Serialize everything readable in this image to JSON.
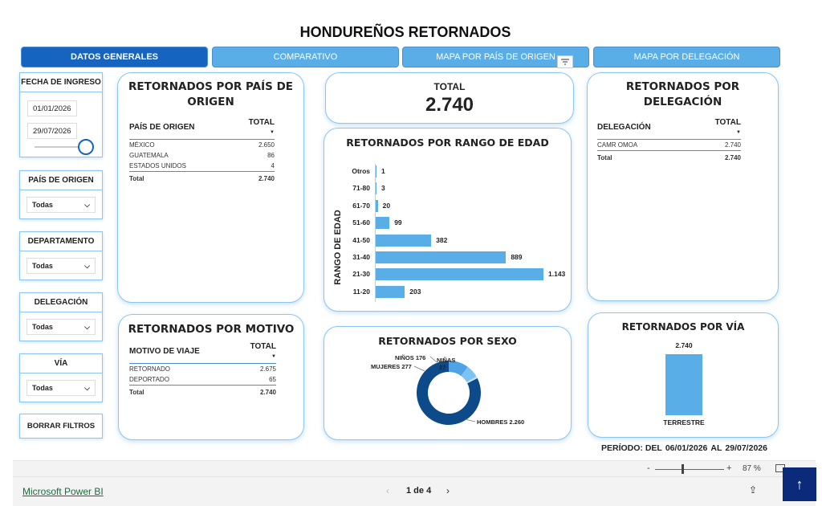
{
  "title": "HONDUREÑOS RETORNADOS",
  "tabs": [
    {
      "label": "DATOS GENERALES"
    },
    {
      "label": "COMPARATIVO"
    },
    {
      "label": "MAPA POR PAÍS DE ORIGEN"
    },
    {
      "label": "MAPA POR DELEGACIÓN"
    }
  ],
  "slicers": {
    "fecha": {
      "head": "FECHA DE INGRESO",
      "start": "01/01/2026",
      "end": "29/07/2026"
    },
    "pais": {
      "head": "PAÍS DE ORIGEN",
      "value": "Todas"
    },
    "departamento": {
      "head": "DEPARTAMENTO",
      "value": "Todas"
    },
    "delegacion": {
      "head": "DELEGACIÓN",
      "value": "Todas"
    },
    "via": {
      "head": "VÍA",
      "value": "Todas"
    },
    "clear_label": "BORRAR FILTROS"
  },
  "pais_card": {
    "title": "RETORNADOS POR PAÍS DE ORIGEN",
    "col1": "PAÍS DE ORIGEN",
    "col2": "TOTAL",
    "rows": [
      {
        "name": "MÉXICO",
        "value": "2.650"
      },
      {
        "name": "GUATEMALA",
        "value": "86"
      },
      {
        "name": "ESTADOS UNIDOS",
        "value": "4"
      }
    ],
    "total_label": "Total",
    "total_value": "2.740"
  },
  "total_card": {
    "label": "TOTAL",
    "value": "2.740"
  },
  "delegacion_card": {
    "title": "RETORNADOS POR DELEGACIÓN",
    "col1": "DELEGACIÓN",
    "col2": "TOTAL",
    "rows": [
      {
        "name": "CAMR OMOA",
        "value": "2.740"
      }
    ],
    "total_label": "Total",
    "total_value": "2.740"
  },
  "edad_card": {
    "title": "RETORNADOS POR RANGO DE EDAD",
    "ylabel": "RANGO DE EDAD"
  },
  "motivo_card": {
    "title": "RETORNADOS POR MOTIVO",
    "col1": "MOTIVO DE VIAJE",
    "col2": "TOTAL",
    "rows": [
      {
        "name": "RETORNADO",
        "value": "2.675"
      },
      {
        "name": "DEPORTADO",
        "value": "65"
      }
    ],
    "total_label": "Total",
    "total_value": "2.740"
  },
  "sexo_card": {
    "title": "RETORNADOS POR SEXO"
  },
  "via_card": {
    "title": "RETORNADOS POR VÍA"
  },
  "periodo": {
    "label": "PERÍODO: DEL",
    "start": "06/01/2026",
    "al": "AL",
    "end": "29/07/2026"
  },
  "zoom": {
    "minus": "-",
    "plus": "+",
    "level": "87 %"
  },
  "footer": {
    "brand": "Microsoft Power BI",
    "page": "1 de 4"
  },
  "colors": {
    "accent": "#1565c0",
    "bar": "#5aaee8",
    "donut_dark": "#0d4a8a",
    "donut_light": "#4da3e6"
  },
  "chart_data": [
    {
      "type": "bar",
      "orientation": "horizontal",
      "title": "RETORNADOS POR RANGO DE EDAD",
      "ylabel": "RANGO DE EDAD",
      "categories": [
        "Otros",
        "71-80",
        "61-70",
        "51-60",
        "41-50",
        "31-40",
        "21-30",
        "11-20"
      ],
      "values": [
        1,
        3,
        20,
        99,
        382,
        889,
        1143,
        203
      ],
      "labels": [
        "1",
        "3",
        "20",
        "99",
        "382",
        "889",
        "1.143",
        "203"
      ]
    },
    {
      "type": "pie",
      "title": "RETORNADOS POR SEXO",
      "categories": [
        "HOMBRES",
        "MUJERES",
        "NIÑOS",
        "NIÑAS"
      ],
      "values": [
        2260,
        277,
        176,
        27
      ],
      "labels": [
        "HOMBRES 2.260",
        "MUJERES 277",
        "NIÑOS 176",
        "NIÑAS 27"
      ]
    },
    {
      "type": "bar",
      "title": "RETORNADOS POR VÍA",
      "categories": [
        "TERRESTRE"
      ],
      "values": [
        2740
      ],
      "labels": [
        "2.740"
      ]
    }
  ]
}
